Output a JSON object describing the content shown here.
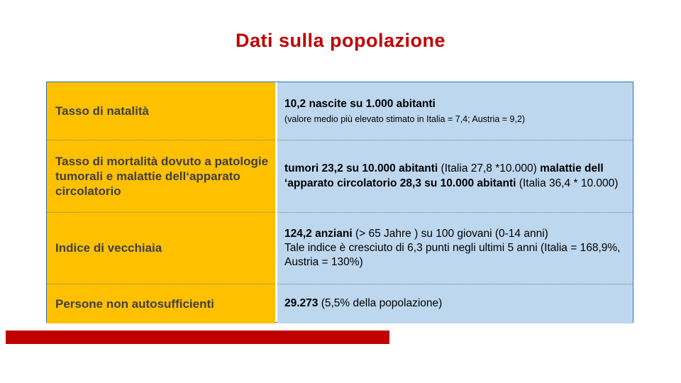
{
  "title": "Dati sulla popolazione",
  "colors": {
    "accent_red": "#C00000",
    "label_bg": "#FFC000",
    "value_bg": "#BDD7EE",
    "border_blue": "#2E75B6"
  },
  "table": {
    "rows": [
      {
        "label": "Tasso di natalità",
        "segments": [
          {
            "text": "10,2 nascite su 1.000 abitanti",
            "bold": true,
            "block": true
          },
          {
            "text": "(valore medio più elevato stimato in Italia = 7,4; Austria = 9,2)",
            "small": true,
            "block": true
          }
        ]
      },
      {
        "label": "Tasso di mortalità dovuto a patologie tumorali e malattie dell‘apparato circolatorio",
        "segments": [
          {
            "text": "tumori 23,2 su 10.000 abitanti ",
            "bold": true
          },
          {
            "text": "(Italia 27,8 *10.000) "
          },
          {
            "text": "malattie dell ‘apparato circolatorio 28,3 su 10.000 abitanti ",
            "bold": true
          },
          {
            "text": "(Italia 36,4 * 10.000)"
          }
        ]
      },
      {
        "label": "Indice di vecchiaia",
        "segments": [
          {
            "text": "124,2 anziani ",
            "bold": true
          },
          {
            "text": "(> 65 Jahre ) su 100 giovani (0-14 anni)"
          },
          {
            "text": "Tale indice è cresciuto di 6,3 punti negli ultimi 5 anni (Italia = 168,9%, Austria = 130%)",
            "block": true
          }
        ]
      },
      {
        "label": "Persone non autosufficienti",
        "segments": [
          {
            "text": "29.273 ",
            "bold": true
          },
          {
            "text": "(5,5% della popolazione)"
          }
        ]
      }
    ]
  }
}
